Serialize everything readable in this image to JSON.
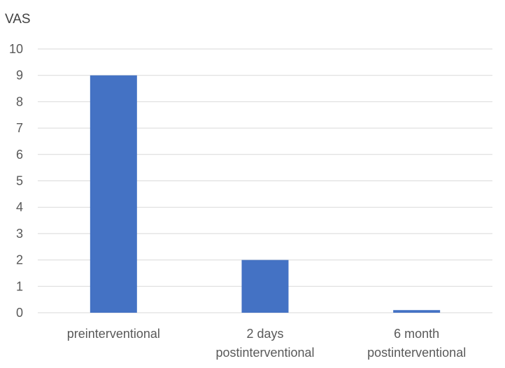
{
  "chart_data": {
    "type": "bar",
    "title": "",
    "xlabel": "",
    "ylabel": "VAS",
    "ylim": [
      0,
      10
    ],
    "yticks": [
      0,
      1,
      2,
      3,
      4,
      5,
      6,
      7,
      8,
      9,
      10
    ],
    "grid": true,
    "legend": "none",
    "categories": [
      [
        "preinterventional"
      ],
      [
        "2 days",
        "postinterventional"
      ],
      [
        "6 month",
        "postinterventional"
      ]
    ],
    "values": [
      9,
      2,
      0.1
    ],
    "colors": {
      "bar": "#4472C4",
      "grid": "#D9D9D9",
      "text": "#595959"
    }
  }
}
